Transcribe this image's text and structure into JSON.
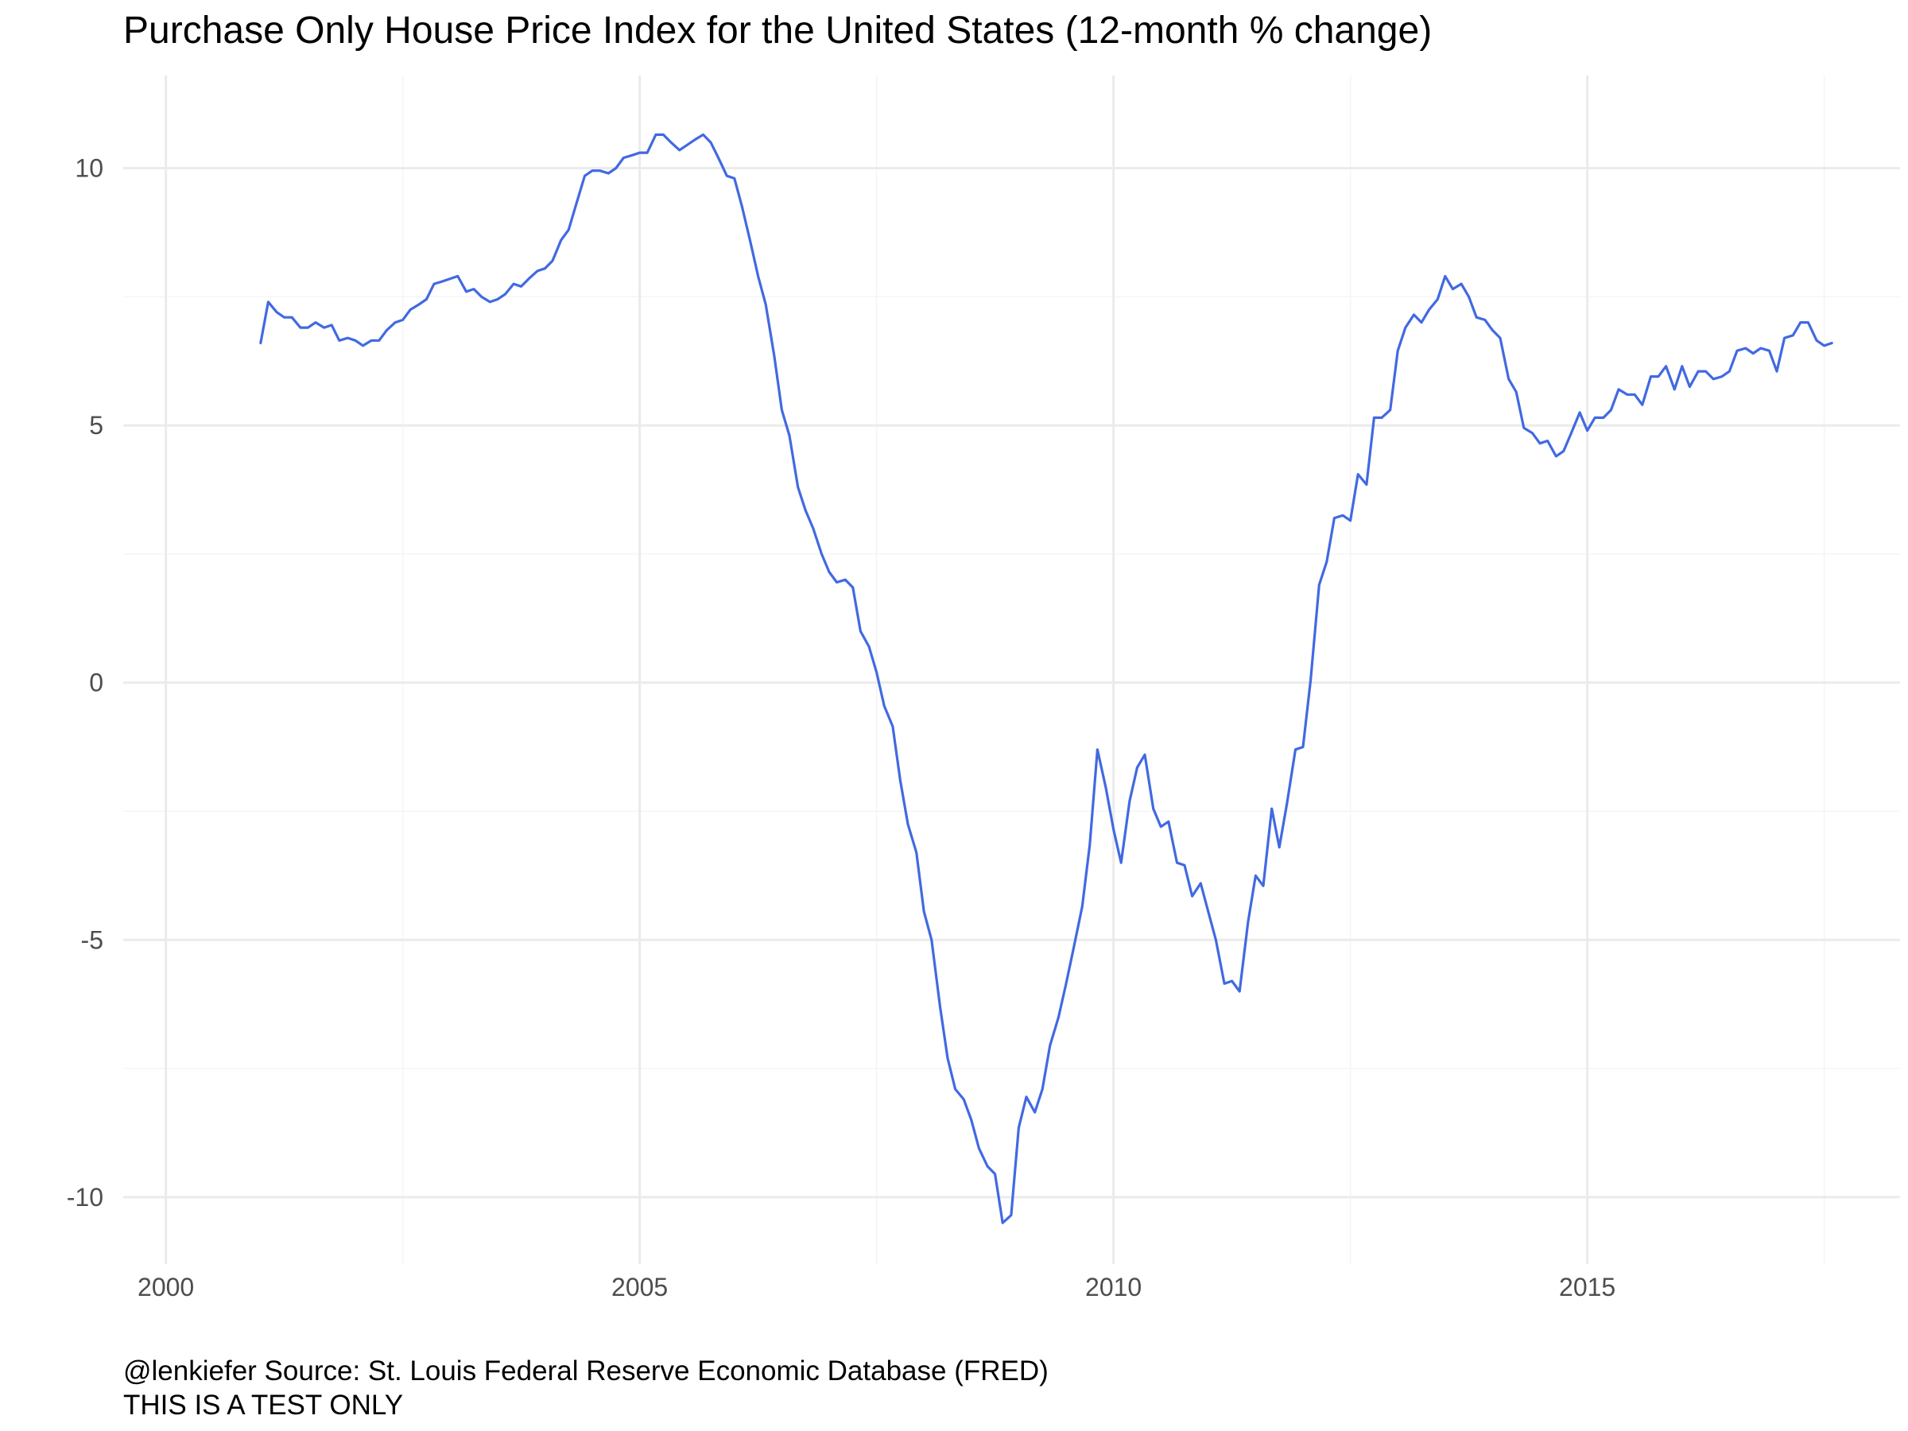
{
  "title": "Purchase Only House Price Index for the United States (12-month % change)",
  "caption": {
    "line1": "@lenkiefer Source: St. Louis Federal Reserve Economic Database (FRED)",
    "line2": "THIS IS A TEST ONLY"
  },
  "colors": {
    "line": "#4169E1",
    "grid_major": "#ebebeb",
    "grid_minor": "#f5f5f5",
    "tick_text": "#4d4d4d",
    "background": "#ffffff"
  },
  "chart_data": {
    "type": "line",
    "title": "Purchase Only House Price Index for the United States (12-month % change)",
    "xlabel": "",
    "ylabel": "",
    "xlim": [
      1999.55,
      2018.3
    ],
    "ylim": [
      -11.3,
      11.8
    ],
    "x_ticks": [
      2000,
      2005,
      2010,
      2015
    ],
    "x_tick_labels": [
      "2000",
      "2005",
      "2010",
      "2015"
    ],
    "y_ticks": [
      -10,
      -5,
      0,
      5,
      10
    ],
    "y_tick_labels": [
      "-10",
      "-5",
      "0",
      "5",
      "10"
    ],
    "grid": true,
    "legend": "none",
    "series": [
      {
        "points": [
          [
            2001.0,
            6.6
          ],
          [
            2001.08,
            7.4
          ],
          [
            2001.17,
            7.2
          ],
          [
            2001.25,
            7.1
          ],
          [
            2001.33,
            7.1
          ],
          [
            2001.42,
            6.9
          ],
          [
            2001.5,
            6.9
          ],
          [
            2001.58,
            7.0
          ],
          [
            2001.67,
            6.9
          ],
          [
            2001.75,
            6.95
          ],
          [
            2001.83,
            6.65
          ],
          [
            2001.92,
            6.7
          ],
          [
            2002.0,
            6.65
          ],
          [
            2002.08,
            6.55
          ],
          [
            2002.17,
            6.65
          ],
          [
            2002.25,
            6.65
          ],
          [
            2002.33,
            6.85
          ],
          [
            2002.42,
            7.0
          ],
          [
            2002.5,
            7.05
          ],
          [
            2002.58,
            7.25
          ],
          [
            2002.67,
            7.35
          ],
          [
            2002.75,
            7.45
          ],
          [
            2002.83,
            7.75
          ],
          [
            2002.92,
            7.8
          ],
          [
            2003.0,
            7.85
          ],
          [
            2003.08,
            7.9
          ],
          [
            2003.17,
            7.6
          ],
          [
            2003.25,
            7.65
          ],
          [
            2003.33,
            7.5
          ],
          [
            2003.42,
            7.4
          ],
          [
            2003.5,
            7.45
          ],
          [
            2003.58,
            7.55
          ],
          [
            2003.67,
            7.75
          ],
          [
            2003.75,
            7.7
          ],
          [
            2003.83,
            7.85
          ],
          [
            2003.92,
            8.0
          ],
          [
            2004.0,
            8.05
          ],
          [
            2004.08,
            8.2
          ],
          [
            2004.17,
            8.6
          ],
          [
            2004.25,
            8.8
          ],
          [
            2004.33,
            9.3
          ],
          [
            2004.42,
            9.85
          ],
          [
            2004.5,
            9.95
          ],
          [
            2004.58,
            9.95
          ],
          [
            2004.67,
            9.9
          ],
          [
            2004.75,
            10.0
          ],
          [
            2004.83,
            10.2
          ],
          [
            2004.92,
            10.25
          ],
          [
            2005.0,
            10.3
          ],
          [
            2005.08,
            10.3
          ],
          [
            2005.17,
            10.65
          ],
          [
            2005.25,
            10.65
          ],
          [
            2005.33,
            10.5
          ],
          [
            2005.42,
            10.35
          ],
          [
            2005.5,
            10.45
          ],
          [
            2005.58,
            10.55
          ],
          [
            2005.67,
            10.65
          ],
          [
            2005.75,
            10.5
          ],
          [
            2005.83,
            10.2
          ],
          [
            2005.92,
            9.85
          ],
          [
            2006.0,
            9.8
          ],
          [
            2006.08,
            9.25
          ],
          [
            2006.17,
            8.55
          ],
          [
            2006.25,
            7.9
          ],
          [
            2006.33,
            7.35
          ],
          [
            2006.42,
            6.35
          ],
          [
            2006.5,
            5.3
          ],
          [
            2006.58,
            4.8
          ],
          [
            2006.67,
            3.8
          ],
          [
            2006.75,
            3.35
          ],
          [
            2006.83,
            3.0
          ],
          [
            2006.92,
            2.5
          ],
          [
            2007.0,
            2.15
          ],
          [
            2007.08,
            1.95
          ],
          [
            2007.17,
            2.0
          ],
          [
            2007.25,
            1.85
          ],
          [
            2007.33,
            1.0
          ],
          [
            2007.42,
            0.7
          ],
          [
            2007.5,
            0.2
          ],
          [
            2007.58,
            -0.45
          ],
          [
            2007.67,
            -0.85
          ],
          [
            2007.75,
            -1.9
          ],
          [
            2007.83,
            -2.75
          ],
          [
            2007.92,
            -3.3
          ],
          [
            2008.0,
            -4.45
          ],
          [
            2008.08,
            -5.0
          ],
          [
            2008.17,
            -6.3
          ],
          [
            2008.25,
            -7.3
          ],
          [
            2008.33,
            -7.9
          ],
          [
            2008.42,
            -8.1
          ],
          [
            2008.5,
            -8.5
          ],
          [
            2008.58,
            -9.05
          ],
          [
            2008.67,
            -9.4
          ],
          [
            2008.75,
            -9.55
          ],
          [
            2008.83,
            -10.5
          ],
          [
            2008.92,
            -10.35
          ],
          [
            2009.0,
            -8.65
          ],
          [
            2009.08,
            -8.05
          ],
          [
            2009.17,
            -8.35
          ],
          [
            2009.25,
            -7.9
          ],
          [
            2009.33,
            -7.05
          ],
          [
            2009.42,
            -6.5
          ],
          [
            2009.5,
            -5.85
          ],
          [
            2009.58,
            -5.15
          ],
          [
            2009.67,
            -4.35
          ],
          [
            2009.75,
            -3.15
          ],
          [
            2009.83,
            -1.3
          ],
          [
            2009.92,
            -2.05
          ],
          [
            2010.0,
            -2.85
          ],
          [
            2010.08,
            -3.5
          ],
          [
            2010.17,
            -2.3
          ],
          [
            2010.25,
            -1.65
          ],
          [
            2010.33,
            -1.4
          ],
          [
            2010.42,
            -2.45
          ],
          [
            2010.5,
            -2.8
          ],
          [
            2010.58,
            -2.7
          ],
          [
            2010.67,
            -3.5
          ],
          [
            2010.75,
            -3.55
          ],
          [
            2010.83,
            -4.15
          ],
          [
            2010.92,
            -3.9
          ],
          [
            2011.0,
            -4.45
          ],
          [
            2011.08,
            -5.0
          ],
          [
            2011.17,
            -5.85
          ],
          [
            2011.25,
            -5.8
          ],
          [
            2011.33,
            -6.0
          ],
          [
            2011.42,
            -4.65
          ],
          [
            2011.5,
            -3.75
          ],
          [
            2011.58,
            -3.95
          ],
          [
            2011.67,
            -2.45
          ],
          [
            2011.75,
            -3.2
          ],
          [
            2011.83,
            -2.35
          ],
          [
            2011.92,
            -1.3
          ],
          [
            2012.0,
            -1.25
          ],
          [
            2012.08,
            0.05
          ],
          [
            2012.17,
            1.9
          ],
          [
            2012.25,
            2.35
          ],
          [
            2012.33,
            3.2
          ],
          [
            2012.42,
            3.25
          ],
          [
            2012.5,
            3.15
          ],
          [
            2012.58,
            4.05
          ],
          [
            2012.67,
            3.85
          ],
          [
            2012.75,
            5.15
          ],
          [
            2012.83,
            5.15
          ],
          [
            2012.92,
            5.3
          ],
          [
            2013.0,
            6.45
          ],
          [
            2013.08,
            6.9
          ],
          [
            2013.17,
            7.15
          ],
          [
            2013.25,
            7.0
          ],
          [
            2013.33,
            7.25
          ],
          [
            2013.42,
            7.45
          ],
          [
            2013.5,
            7.9
          ],
          [
            2013.58,
            7.65
          ],
          [
            2013.67,
            7.75
          ],
          [
            2013.75,
            7.5
          ],
          [
            2013.83,
            7.1
          ],
          [
            2013.92,
            7.05
          ],
          [
            2014.0,
            6.85
          ],
          [
            2014.08,
            6.7
          ],
          [
            2014.17,
            5.9
          ],
          [
            2014.25,
            5.65
          ],
          [
            2014.33,
            4.95
          ],
          [
            2014.42,
            4.85
          ],
          [
            2014.5,
            4.65
          ],
          [
            2014.58,
            4.7
          ],
          [
            2014.67,
            4.4
          ],
          [
            2014.75,
            4.5
          ],
          [
            2014.83,
            4.85
          ],
          [
            2014.92,
            5.25
          ],
          [
            2015.0,
            4.9
          ],
          [
            2015.08,
            5.15
          ],
          [
            2015.17,
            5.15
          ],
          [
            2015.25,
            5.3
          ],
          [
            2015.33,
            5.7
          ],
          [
            2015.42,
            5.6
          ],
          [
            2015.5,
            5.6
          ],
          [
            2015.58,
            5.4
          ],
          [
            2015.67,
            5.95
          ],
          [
            2015.75,
            5.95
          ],
          [
            2015.83,
            6.15
          ],
          [
            2015.92,
            5.7
          ],
          [
            2016.0,
            6.15
          ],
          [
            2016.08,
            5.75
          ],
          [
            2016.17,
            6.05
          ],
          [
            2016.25,
            6.05
          ],
          [
            2016.33,
            5.9
          ],
          [
            2016.42,
            5.95
          ],
          [
            2016.5,
            6.05
          ],
          [
            2016.58,
            6.45
          ],
          [
            2016.67,
            6.5
          ],
          [
            2016.75,
            6.4
          ],
          [
            2016.83,
            6.5
          ],
          [
            2016.92,
            6.45
          ],
          [
            2017.0,
            6.05
          ],
          [
            2017.08,
            6.7
          ],
          [
            2017.17,
            6.75
          ],
          [
            2017.25,
            7.0
          ],
          [
            2017.33,
            7.0
          ],
          [
            2017.42,
            6.65
          ],
          [
            2017.5,
            6.55
          ],
          [
            2017.58,
            6.6
          ]
        ]
      }
    ]
  }
}
